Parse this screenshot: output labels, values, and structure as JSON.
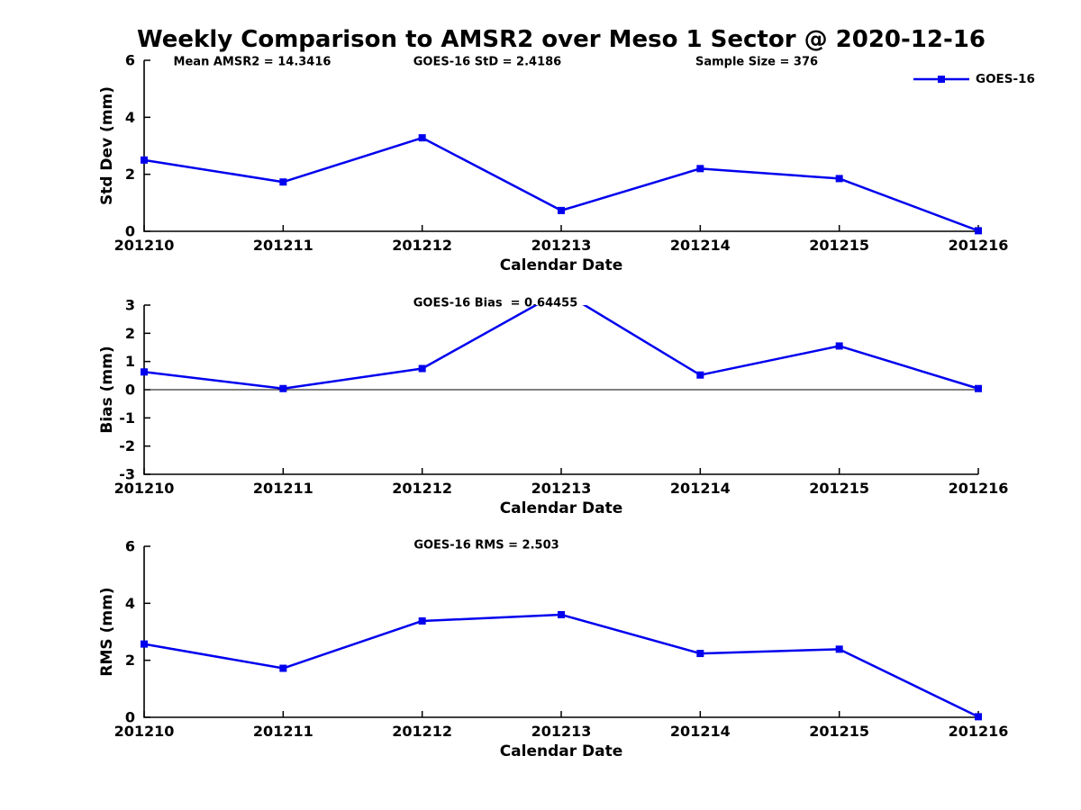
{
  "title": "Weekly Comparison to AMSR2 over Meso 1 Sector @ 2020-12-16",
  "colors": {
    "line": "#0000EE",
    "axis": "#000000",
    "text": "#000000",
    "background": "#FFFFFF"
  },
  "legend": {
    "label": "GOES-16",
    "position": "upper right"
  },
  "x_axis_label": "Calendar Date",
  "chart_data": [
    {
      "type": "line",
      "name": "std-dev-panel",
      "annotations": [
        "Mean AMSR2 = 14.3416",
        "GOES-16 StD = 2.4186",
        "Sample Size = 376"
      ],
      "ylabel": "Std Dev (mm)",
      "xlabel": "Calendar Date",
      "categories": [
        "201210",
        "201211",
        "201212",
        "201213",
        "201214",
        "201215",
        "201216"
      ],
      "series": [
        {
          "name": "GOES-16",
          "values": [
            2.5,
            1.73,
            3.28,
            0.73,
            2.2,
            1.85,
            0.02
          ]
        }
      ],
      "ylim": [
        0,
        6
      ],
      "yticks": [
        0,
        2,
        4,
        6
      ],
      "grid": false,
      "zero_line": false
    },
    {
      "type": "line",
      "name": "bias-panel",
      "annotations": [
        "GOES-16 Bias  = 0.64455"
      ],
      "ylabel": "Bias (mm)",
      "xlabel": "Calendar Date",
      "categories": [
        "201210",
        "201211",
        "201212",
        "201213",
        "201214",
        "201215",
        "201216"
      ],
      "series": [
        {
          "name": "GOES-16",
          "values": [
            0.63,
            0.04,
            0.75,
            3.5,
            0.52,
            1.55,
            0.04
          ]
        }
      ],
      "ylim": [
        -3,
        3
      ],
      "yticks": [
        -3,
        -2,
        -1,
        0,
        1,
        2,
        3
      ],
      "grid": false,
      "zero_line": true,
      "note": "peak at 201213 exceeds ylim and is clipped at y=3"
    },
    {
      "type": "line",
      "name": "rms-panel",
      "annotations": [
        "GOES-16 RMS = 2.503"
      ],
      "ylabel": "RMS (mm)",
      "xlabel": "Calendar Date",
      "categories": [
        "201210",
        "201211",
        "201212",
        "201213",
        "201214",
        "201215",
        "201216"
      ],
      "series": [
        {
          "name": "GOES-16",
          "values": [
            2.57,
            1.72,
            3.38,
            3.6,
            2.24,
            2.39,
            0.02
          ]
        }
      ],
      "ylim": [
        0,
        6
      ],
      "yticks": [
        0,
        2,
        4,
        6
      ],
      "grid": false,
      "zero_line": false
    }
  ]
}
